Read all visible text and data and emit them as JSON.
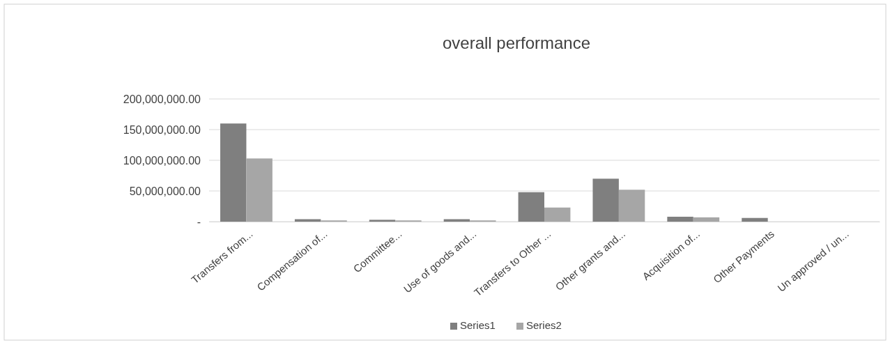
{
  "chart_data": {
    "type": "bar",
    "title": "overall performance",
    "categories": [
      "Transfers from...",
      "Compensation of...",
      "Committee...",
      "Use of goods and...",
      "Transfers to Other ...",
      "Other grants and...",
      "Acquisition of...",
      "Other Payments",
      "Un approved / un..."
    ],
    "series": [
      {
        "name": "Series1",
        "color": "#7f7f7f",
        "values": [
          160000000,
          4000000,
          3000000,
          4000000,
          48000000,
          70000000,
          8000000,
          6000000,
          0
        ]
      },
      {
        "name": "Series2",
        "color": "#a6a6a6",
        "values": [
          103000000,
          2000000,
          2000000,
          2000000,
          23000000,
          52000000,
          7000000,
          0,
          0
        ]
      }
    ],
    "ylim": [
      0,
      200000000
    ],
    "yticks": [
      {
        "value": 0,
        "label": "-"
      },
      {
        "value": 50000000,
        "label": "50,000,000.00"
      },
      {
        "value": 100000000,
        "label": "100,000,000.00"
      },
      {
        "value": 150000000,
        "label": "150,000,000.00"
      },
      {
        "value": 200000000,
        "label": "200,000,000.00"
      }
    ],
    "grid": "y",
    "legend": "bottom"
  }
}
